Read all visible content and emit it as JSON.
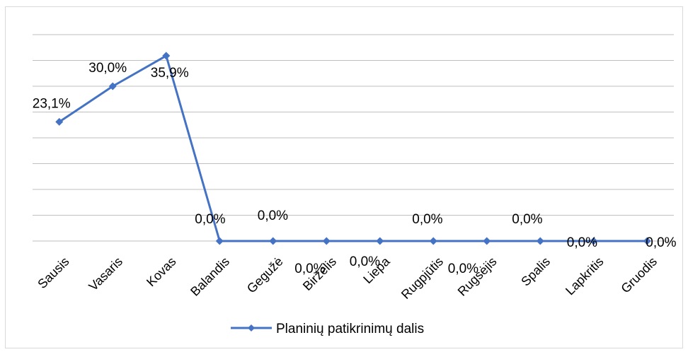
{
  "chart_data": {
    "type": "line",
    "categories": [
      "Sausis",
      "Vasaris",
      "Kovas",
      "Balandis",
      "Gegužė",
      "Birželis",
      "Liepa",
      "Rugpjūtis",
      "Rugsėjis",
      "Spalis",
      "Lapkritis",
      "Gruodis"
    ],
    "series": [
      {
        "name": "Planinių patikrinimų dalis",
        "values": [
          23.1,
          30.0,
          35.9,
          0.0,
          0.0,
          0.0,
          0.0,
          0.0,
          0.0,
          0.0,
          0.0,
          0.0
        ],
        "labels": [
          "23,1%",
          "30,0%",
          "35,9%",
          "0,0%",
          "0,0%",
          "0,0%",
          "0,0%",
          "0,0%",
          "0,0%",
          "0,0%",
          "0,0%",
          "0,0%"
        ],
        "color": "#4472c4"
      }
    ],
    "ylim": [
      0,
      40
    ],
    "grid": true,
    "legend": "bottom"
  }
}
